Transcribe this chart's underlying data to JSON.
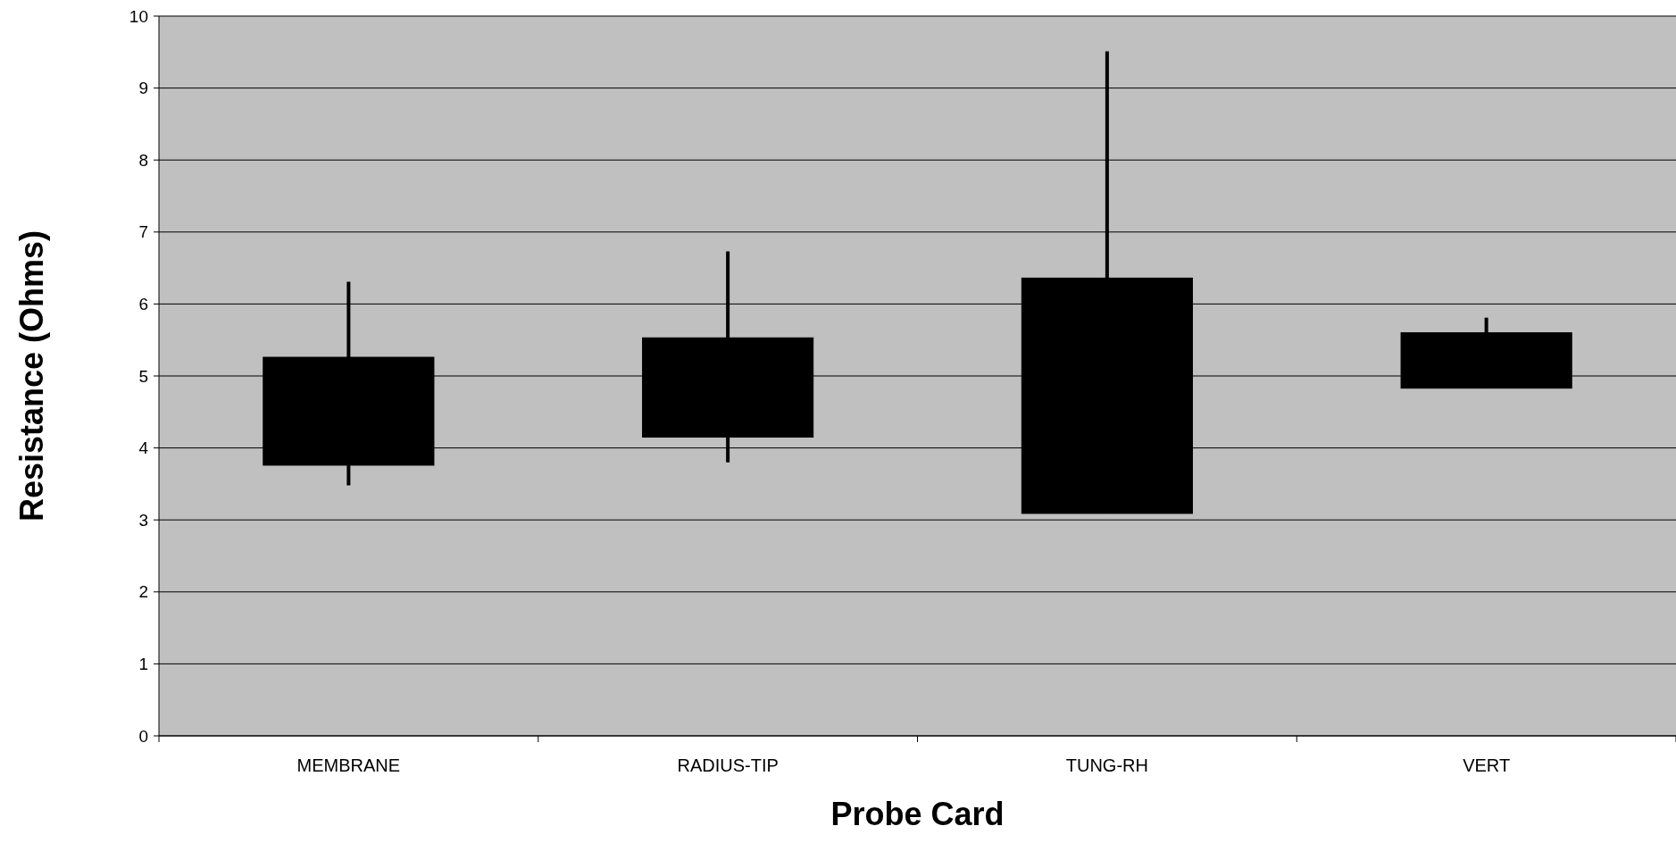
{
  "chart_data": {
    "type": "candlestick",
    "xlabel": "Probe Card",
    "ylabel": "Resistance (Ohms)",
    "categories": [
      "MEMBRANE",
      "RADIUS-TIP",
      "TUNG-RH",
      "VERT"
    ],
    "ohlc": [
      [
        5.26,
        6.31,
        3.48,
        3.76
      ],
      [
        5.53,
        6.73,
        3.8,
        4.15
      ],
      [
        6.36,
        9.51,
        3.09,
        3.09
      ],
      [
        5.6,
        5.81,
        4.83,
        4.83
      ]
    ],
    "color": "#000000",
    "ylim": [
      0,
      10
    ],
    "yticks": [
      0,
      1,
      2,
      3,
      4,
      5,
      6,
      7,
      8,
      9,
      10
    ],
    "grid": "y"
  }
}
